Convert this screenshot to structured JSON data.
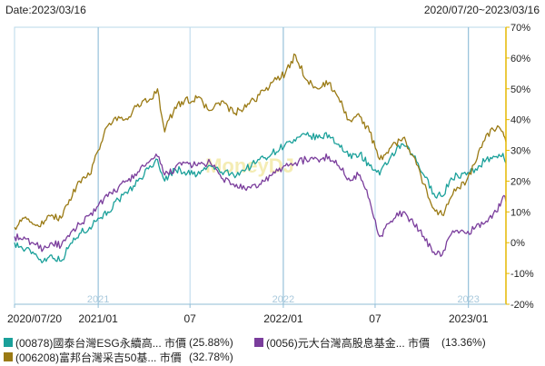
{
  "header": {
    "date_label": "Date:2023/03/16",
    "range_label": "2020/07/20~2023/03/16"
  },
  "watermark": "MoneyDJ",
  "chart_data": {
    "type": "line",
    "x_start": "2020/07/20",
    "x_end": "2023/03/16",
    "x_tick_labels": [
      {
        "date": "2020-07-20",
        "label": "2020/07/20"
      },
      {
        "date": "2021-01-01",
        "label": "2021/01"
      },
      {
        "date": "2021-07-01",
        "label": "07"
      },
      {
        "date": "2022-01-01",
        "label": "2022/01"
      },
      {
        "date": "2022-07-01",
        "label": "07"
      },
      {
        "date": "2023-01-01",
        "label": "2023/01"
      }
    ],
    "year_labels": [
      {
        "date": "2021-01-01",
        "label": "2021"
      },
      {
        "date": "2022-01-01",
        "label": "2022"
      },
      {
        "date": "2023-01-01",
        "label": "2023"
      }
    ],
    "y_ticks": [
      70,
      60,
      50,
      40,
      30,
      20,
      10,
      0,
      -10,
      -20
    ],
    "y_tick_labels": [
      "70%",
      "60%",
      "50%",
      "40%",
      "30%",
      "20%",
      "10%",
      "0%",
      "-10%",
      "-20%"
    ],
    "ylim": [
      -20,
      70
    ],
    "y_axis_side": "right",
    "grid": true,
    "series": [
      {
        "name": "(00878)國泰台灣ESG永續高... 市價",
        "value_label": "(25.88%)",
        "color": "#1aa09a",
        "points": [
          [
            "2020-07-20",
            0
          ],
          [
            "2020-08-05",
            -2
          ],
          [
            "2020-08-25",
            -3
          ],
          [
            "2020-09-15",
            -6
          ],
          [
            "2020-10-01",
            -4
          ],
          [
            "2020-10-20",
            -6
          ],
          [
            "2020-11-05",
            -1
          ],
          [
            "2020-11-25",
            3
          ],
          [
            "2020-12-15",
            5
          ],
          [
            "2021-01-01",
            8
          ],
          [
            "2021-01-20",
            10
          ],
          [
            "2021-02-10",
            14
          ],
          [
            "2021-02-28",
            16
          ],
          [
            "2021-03-20",
            20
          ],
          [
            "2021-04-10",
            24
          ],
          [
            "2021-04-28",
            27
          ],
          [
            "2021-05-12",
            20
          ],
          [
            "2021-06-01",
            24
          ],
          [
            "2021-06-20",
            23
          ],
          [
            "2021-07-15",
            22
          ],
          [
            "2021-08-10",
            25
          ],
          [
            "2021-09-01",
            23
          ],
          [
            "2021-09-25",
            22
          ],
          [
            "2021-10-20",
            24
          ],
          [
            "2021-11-15",
            27
          ],
          [
            "2021-12-10",
            29
          ],
          [
            "2022-01-05",
            32
          ],
          [
            "2022-01-25",
            33
          ],
          [
            "2022-02-15",
            35
          ],
          [
            "2022-03-10",
            34
          ],
          [
            "2022-04-01",
            35
          ],
          [
            "2022-04-20",
            32
          ],
          [
            "2022-05-10",
            28
          ],
          [
            "2022-06-01",
            29
          ],
          [
            "2022-06-20",
            25
          ],
          [
            "2022-07-10",
            22
          ],
          [
            "2022-08-01",
            28
          ],
          [
            "2022-08-25",
            32
          ],
          [
            "2022-09-15",
            28
          ],
          [
            "2022-10-05",
            22
          ],
          [
            "2022-10-25",
            16
          ],
          [
            "2022-11-10",
            15
          ],
          [
            "2022-11-25",
            20
          ],
          [
            "2022-12-10",
            22
          ],
          [
            "2022-12-28",
            22
          ],
          [
            "2023-01-15",
            24
          ],
          [
            "2023-02-05",
            27
          ],
          [
            "2023-02-25",
            28
          ],
          [
            "2023-03-10",
            29
          ],
          [
            "2023-03-16",
            25.88
          ]
        ]
      },
      {
        "name": "(0056)元大台灣高股息基金... 市價",
        "value_label": "(13.36%)",
        "color": "#7a3d9c",
        "points": [
          [
            "2020-07-20",
            2
          ],
          [
            "2020-08-05",
            1
          ],
          [
            "2020-08-25",
            0
          ],
          [
            "2020-09-15",
            -2
          ],
          [
            "2020-10-01",
            0
          ],
          [
            "2020-10-20",
            -1
          ],
          [
            "2020-11-05",
            2
          ],
          [
            "2020-11-25",
            6
          ],
          [
            "2020-12-15",
            9
          ],
          [
            "2021-01-01",
            12
          ],
          [
            "2021-01-20",
            15
          ],
          [
            "2021-02-10",
            18
          ],
          [
            "2021-02-28",
            20
          ],
          [
            "2021-03-20",
            23
          ],
          [
            "2021-04-10",
            26
          ],
          [
            "2021-04-28",
            28
          ],
          [
            "2021-05-12",
            22
          ],
          [
            "2021-06-01",
            24
          ],
          [
            "2021-06-20",
            26
          ],
          [
            "2021-07-15",
            25
          ],
          [
            "2021-08-10",
            26
          ],
          [
            "2021-09-01",
            21
          ],
          [
            "2021-09-25",
            19
          ],
          [
            "2021-10-20",
            17
          ],
          [
            "2021-11-15",
            19
          ],
          [
            "2021-12-10",
            22
          ],
          [
            "2022-01-05",
            25
          ],
          [
            "2022-01-25",
            26
          ],
          [
            "2022-02-15",
            27
          ],
          [
            "2022-03-10",
            27
          ],
          [
            "2022-04-01",
            28
          ],
          [
            "2022-04-20",
            25
          ],
          [
            "2022-05-10",
            21
          ],
          [
            "2022-06-01",
            22
          ],
          [
            "2022-06-20",
            14
          ],
          [
            "2022-07-10",
            2
          ],
          [
            "2022-08-01",
            7
          ],
          [
            "2022-08-25",
            10
          ],
          [
            "2022-09-15",
            6
          ],
          [
            "2022-10-05",
            2
          ],
          [
            "2022-10-25",
            -3
          ],
          [
            "2022-11-10",
            -4
          ],
          [
            "2022-11-25",
            2
          ],
          [
            "2022-12-10",
            4
          ],
          [
            "2022-12-28",
            3
          ],
          [
            "2023-01-15",
            5
          ],
          [
            "2023-02-05",
            7
          ],
          [
            "2023-02-25",
            10
          ],
          [
            "2023-03-10",
            15
          ],
          [
            "2023-03-16",
            13.36
          ]
        ]
      },
      {
        "name": "(006208)富邦台灣采吉50基... 市價",
        "value_label": "(32.78%)",
        "color": "#9a7a14",
        "points": [
          [
            "2020-07-20",
            5
          ],
          [
            "2020-08-05",
            8
          ],
          [
            "2020-08-25",
            6
          ],
          [
            "2020-09-15",
            6
          ],
          [
            "2020-10-01",
            9
          ],
          [
            "2020-10-20",
            8
          ],
          [
            "2020-11-05",
            14
          ],
          [
            "2020-11-25",
            20
          ],
          [
            "2020-12-15",
            22
          ],
          [
            "2021-01-01",
            30
          ],
          [
            "2021-01-20",
            38
          ],
          [
            "2021-02-10",
            41
          ],
          [
            "2021-02-28",
            40
          ],
          [
            "2021-03-20",
            45
          ],
          [
            "2021-04-10",
            46
          ],
          [
            "2021-04-28",
            50
          ],
          [
            "2021-05-12",
            36
          ],
          [
            "2021-06-01",
            44
          ],
          [
            "2021-06-20",
            46
          ],
          [
            "2021-07-15",
            47
          ],
          [
            "2021-08-10",
            43
          ],
          [
            "2021-09-01",
            46
          ],
          [
            "2021-09-25",
            42
          ],
          [
            "2021-10-20",
            44
          ],
          [
            "2021-11-15",
            48
          ],
          [
            "2021-12-10",
            52
          ],
          [
            "2022-01-05",
            55
          ],
          [
            "2022-01-25",
            61
          ],
          [
            "2022-02-15",
            53
          ],
          [
            "2022-03-10",
            50
          ],
          [
            "2022-04-01",
            52
          ],
          [
            "2022-04-20",
            47
          ],
          [
            "2022-05-10",
            40
          ],
          [
            "2022-06-01",
            41
          ],
          [
            "2022-06-20",
            36
          ],
          [
            "2022-07-10",
            27
          ],
          [
            "2022-08-01",
            31
          ],
          [
            "2022-08-25",
            34
          ],
          [
            "2022-09-15",
            28
          ],
          [
            "2022-10-05",
            19
          ],
          [
            "2022-10-25",
            11
          ],
          [
            "2022-11-10",
            9
          ],
          [
            "2022-11-25",
            14
          ],
          [
            "2022-12-10",
            18
          ],
          [
            "2022-12-28",
            20
          ],
          [
            "2023-01-15",
            26
          ],
          [
            "2023-02-05",
            35
          ],
          [
            "2023-02-25",
            37
          ],
          [
            "2023-03-10",
            36
          ],
          [
            "2023-03-16",
            32.78
          ]
        ]
      }
    ]
  }
}
